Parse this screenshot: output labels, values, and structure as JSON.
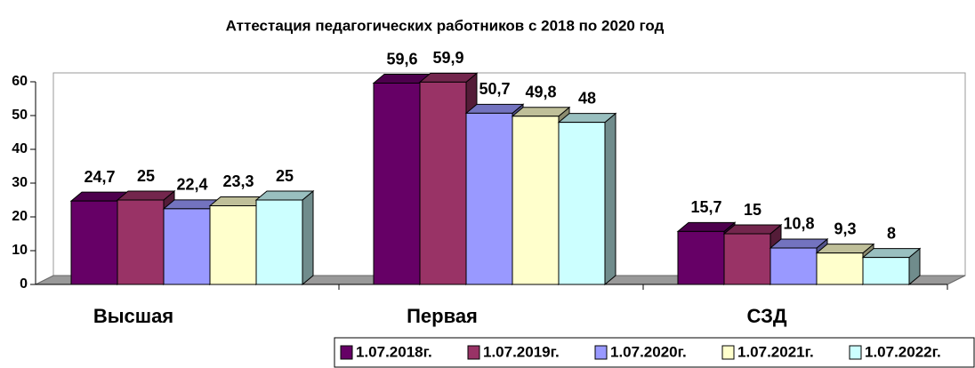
{
  "chart_data": {
    "type": "bar3d",
    "title": "Аттестация педагогических работников с 2018 по 2020 год",
    "categories": [
      "Высшая",
      "Первая",
      "СЗД"
    ],
    "series": [
      {
        "name": "1.07.2018г.",
        "color": "#660066",
        "values": [
          24.7,
          59.6,
          15.7
        ],
        "value_labels": [
          "24,7",
          "59,6",
          "15,7"
        ]
      },
      {
        "name": "1.07.2019г.",
        "color": "#993366",
        "values": [
          25,
          59.9,
          15
        ],
        "value_labels": [
          "25",
          "59,9",
          "15"
        ]
      },
      {
        "name": "1.07.2020г.",
        "color": "#9999ff",
        "values": [
          22.4,
          50.7,
          10.8
        ],
        "value_labels": [
          "22,4",
          "50,7",
          "10,8"
        ]
      },
      {
        "name": "1.07.2021г.",
        "color": "#ffffcc",
        "values": [
          23.3,
          49.8,
          9.3
        ],
        "value_labels": [
          "23,3",
          "49,8",
          "9,3"
        ]
      },
      {
        "name": "1.07.2022г.",
        "color": "#ccffff",
        "values": [
          25,
          48,
          8
        ],
        "value_labels": [
          "25",
          "48",
          "8"
        ]
      }
    ],
    "ylim": [
      0,
      60
    ],
    "yticks": [
      0,
      10,
      20,
      30,
      40,
      50,
      60
    ],
    "legend": "bottom-right"
  }
}
